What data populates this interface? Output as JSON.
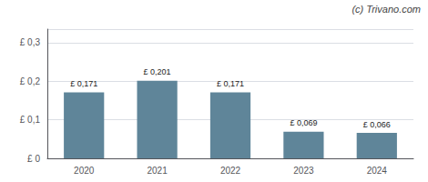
{
  "chart_data": {
    "type": "bar",
    "categories": [
      "2020",
      "2021",
      "2022",
      "2023",
      "2024"
    ],
    "values": [
      0.171,
      0.201,
      0.171,
      0.069,
      0.066
    ],
    "value_labels": [
      "£ 0,171",
      "£ 0,201",
      "£ 0,171",
      "£ 0,069",
      "£ 0,066"
    ],
    "data_labels": true,
    "color": "#5f8599",
    "ylim": [
      0,
      0.335
    ],
    "yticks": [
      {
        "value": 0.0,
        "label": "£ 0"
      },
      {
        "value": 0.1,
        "label": "£ 0,1"
      },
      {
        "value": 0.2,
        "label": "£ 0,2"
      },
      {
        "value": 0.3,
        "label": "£ 0,3"
      }
    ],
    "grid": true,
    "annotations": [
      "(c) Trivano.com"
    ]
  }
}
